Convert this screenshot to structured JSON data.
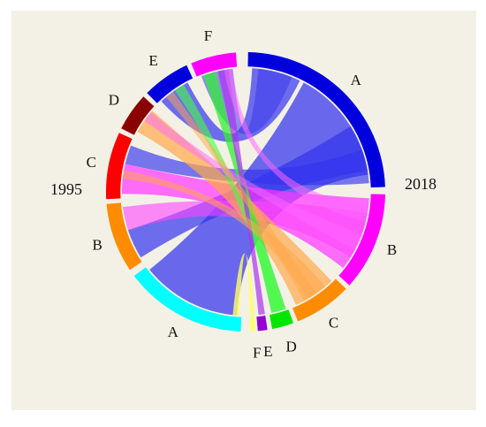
{
  "diagram": {
    "type": "chord",
    "groups": {
      "right": "2018",
      "left": "1995"
    },
    "sectors_2018": [
      {
        "label": "A",
        "color": "#0000dd"
      },
      {
        "label": "B",
        "color": "#ff00ff"
      },
      {
        "label": "C",
        "color": "#ff8c00"
      },
      {
        "label": "D",
        "color": "#00e600"
      },
      {
        "label": "E",
        "color": "#9400d3"
      },
      {
        "label": "F",
        "color": "#ffff66"
      }
    ],
    "sectors_1995": [
      {
        "label": "A",
        "color": "#00ffff"
      },
      {
        "label": "B",
        "color": "#ff8c00"
      },
      {
        "label": "C",
        "color": "#ff0000"
      },
      {
        "label": "D",
        "color": "#8b0000"
      },
      {
        "label": "E",
        "color": "#0000dd"
      },
      {
        "label": "F",
        "color": "#ff00ff"
      }
    ]
  }
}
